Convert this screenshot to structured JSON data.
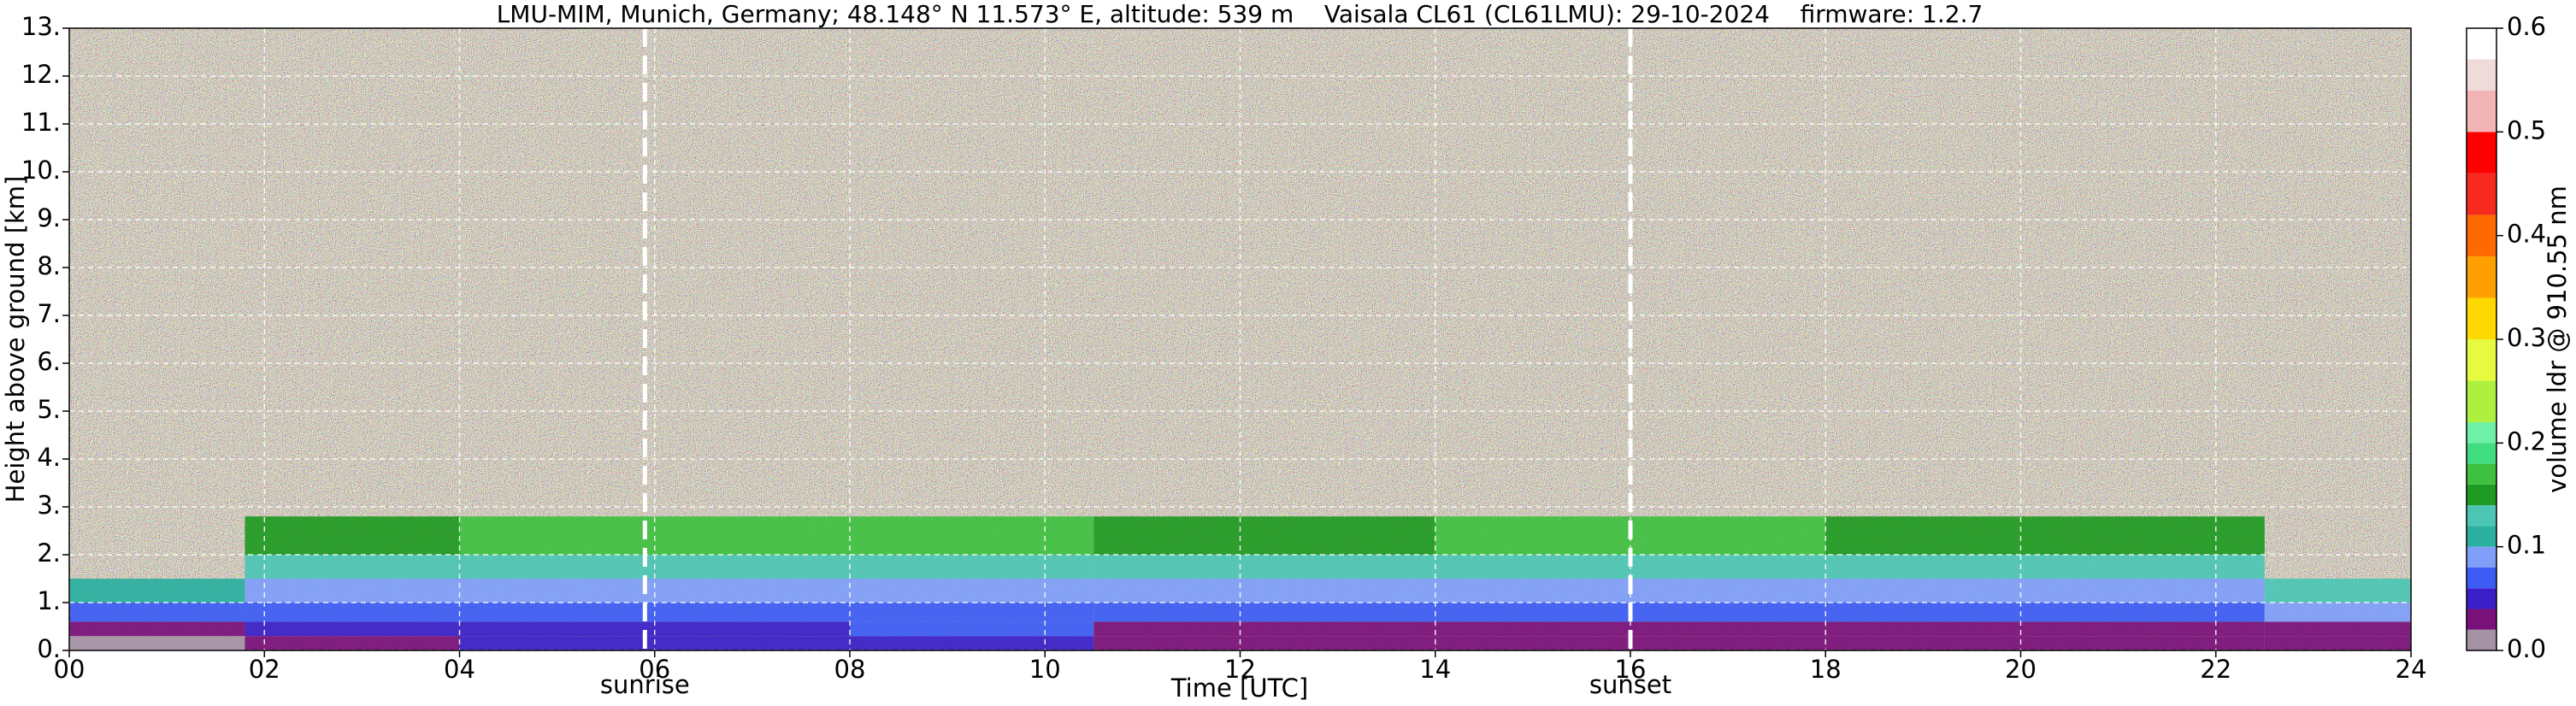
{
  "chart_data": {
    "type": "heatmap",
    "title": "LMU-MIM, Munich, Germany; 48.148° N 11.573° E, altitude: 539 m    Vaisala CL61 (CL61LMU): 29-10-2024    firmware: 1.2.7",
    "xlabel": "Time [UTC]",
    "ylabel": "Height above ground [km]",
    "colorbar_label": "volume ldr @ 910.55 nm",
    "xlim": [
      0,
      24
    ],
    "ylim": [
      0,
      13
    ],
    "xticks": [
      {
        "value": 0,
        "label": "00"
      },
      {
        "value": 2,
        "label": "02"
      },
      {
        "value": 4,
        "label": "04"
      },
      {
        "value": 6,
        "label": "06"
      },
      {
        "value": 8,
        "label": "08"
      },
      10,
      12,
      14,
      16,
      18,
      20,
      22,
      24
    ],
    "yticks": [
      {
        "value": 0,
        "label": "0."
      },
      {
        "value": 1,
        "label": "1."
      },
      {
        "value": 2,
        "label": "2."
      },
      {
        "value": 3,
        "label": "3."
      },
      {
        "value": 4,
        "label": "4."
      },
      {
        "value": 5,
        "label": "5."
      },
      {
        "value": 6,
        "label": "6."
      },
      {
        "value": 7,
        "label": "7."
      },
      {
        "value": 8,
        "label": "8."
      },
      {
        "value": 9,
        "label": "9."
      },
      {
        "value": 10,
        "label": "10."
      },
      {
        "value": 11,
        "label": "11."
      },
      {
        "value": 12,
        "label": "12."
      },
      {
        "value": 13,
        "label": "13."
      }
    ],
    "grid": true,
    "x_edges": [
      0,
      1.8,
      4,
      8,
      10.5,
      14,
      18,
      22.5,
      24
    ],
    "y_edges": [
      0,
      0.3,
      0.6,
      1.0,
      1.5,
      2.0,
      2.8
    ],
    "z": [
      [
        0.01,
        0.03,
        0.04,
        0.05,
        0.03,
        0.03,
        0.03,
        0.02
      ],
      [
        0.02,
        0.04,
        0.05,
        0.06,
        0.03,
        0.03,
        0.03,
        0.03
      ],
      [
        0.06,
        0.07,
        0.07,
        0.07,
        0.07,
        0.06,
        0.07,
        0.08
      ],
      [
        0.1,
        0.09,
        0.08,
        0.09,
        0.09,
        0.08,
        0.08,
        0.12
      ],
      [
        null,
        0.12,
        0.12,
        0.13,
        0.12,
        0.12,
        0.12,
        null
      ],
      [
        null,
        0.15,
        0.16,
        0.16,
        0.15,
        0.16,
        0.15,
        null
      ]
    ],
    "colorscale": {
      "bounds": [
        0,
        0.02,
        0.04,
        0.06,
        0.08,
        0.1,
        0.12,
        0.14,
        0.16,
        0.18,
        0.2,
        0.22,
        0.26,
        0.3,
        0.34,
        0.38,
        0.42,
        0.46,
        0.5,
        0.54,
        0.57,
        0.6
      ],
      "colors": [
        "#a592a5",
        "#7a107a",
        "#3a1ec8",
        "#3c5cf5",
        "#7f9ef8",
        "#2aafa0",
        "#4cc6b4",
        "#1f9a22",
        "#3fc040",
        "#3fdc80",
        "#6ef0a6",
        "#aef040",
        "#e6fa40",
        "#ffd800",
        "#ffa000",
        "#ff6a00",
        "#f82a20",
        "#ff0000",
        "#f2b4b4",
        "#f0dada",
        "#ffffff"
      ]
    },
    "colorbar_ticks": [
      {
        "value": 0,
        "label": "0.0"
      },
      {
        "value": 0.1,
        "label": "0.1"
      },
      {
        "value": 0.2,
        "label": "0.2"
      },
      {
        "value": 0.3,
        "label": "0.3"
      },
      {
        "value": 0.4,
        "label": "0.4"
      },
      {
        "value": 0.5,
        "label": "0.5"
      },
      {
        "value": 0.6,
        "label": "0.6"
      }
    ],
    "annotations": [
      {
        "text": "sunrise",
        "x": 5.9
      },
      {
        "text": "sunset",
        "x": 16.0
      }
    ]
  }
}
